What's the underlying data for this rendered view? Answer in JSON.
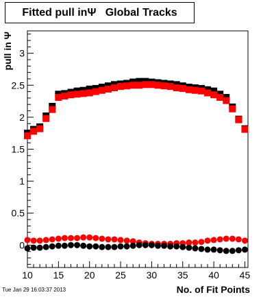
{
  "title": "Fitted pull inΨ   Global Tracks",
  "timestamp": "Tue Jan 29 16:03:37 2013",
  "chart_data": {
    "type": "scatter",
    "title": "Fitted pull inΨ   Global Tracks",
    "xlabel": "No. of Fit Points",
    "ylabel": "pull in  Ψ",
    "xlim": [
      10,
      45.5
    ],
    "ylim": [
      -0.35,
      3.35
    ],
    "xticks": [
      10,
      15,
      20,
      25,
      30,
      35,
      40,
      45
    ],
    "yticks": [
      0,
      0.5,
      1,
      1.5,
      2,
      2.5,
      3
    ],
    "ytick_labels": [
      "0",
      "0.5",
      "1",
      "1.5",
      "2",
      "2.5",
      "3"
    ],
    "grid": false,
    "series": [
      {
        "marker": "square",
        "color": "#000000",
        "x": [
          10,
          11,
          12,
          13,
          14,
          15,
          16,
          17,
          18,
          19,
          20,
          21,
          22,
          23,
          24,
          25,
          26,
          27,
          28,
          29,
          30,
          31,
          32,
          33,
          34,
          35,
          36,
          37,
          38,
          39,
          40,
          41,
          42,
          43,
          44,
          45
        ],
        "y": [
          1.75,
          1.81,
          1.85,
          2.02,
          2.17,
          2.36,
          2.37,
          2.39,
          2.41,
          2.42,
          2.44,
          2.45,
          2.47,
          2.49,
          2.51,
          2.52,
          2.53,
          2.55,
          2.56,
          2.56,
          2.55,
          2.54,
          2.53,
          2.52,
          2.51,
          2.49,
          2.47,
          2.46,
          2.45,
          2.43,
          2.41,
          2.36,
          2.31,
          2.16,
          1.97,
          1.82
        ]
      },
      {
        "marker": "square",
        "color": "#ff0000",
        "x": [
          10,
          11,
          12,
          13,
          14,
          15,
          16,
          17,
          18,
          19,
          20,
          21,
          22,
          23,
          24,
          25,
          26,
          27,
          28,
          29,
          30,
          31,
          32,
          33,
          34,
          35,
          36,
          37,
          38,
          39,
          40,
          41,
          42,
          43,
          44,
          45
        ],
        "y": [
          1.71,
          1.78,
          1.82,
          1.98,
          2.12,
          2.31,
          2.33,
          2.35,
          2.36,
          2.37,
          2.38,
          2.4,
          2.42,
          2.44,
          2.46,
          2.48,
          2.49,
          2.5,
          2.5,
          2.51,
          2.51,
          2.5,
          2.49,
          2.48,
          2.46,
          2.45,
          2.43,
          2.42,
          2.41,
          2.38,
          2.35,
          2.31,
          2.26,
          2.13,
          1.96,
          1.81
        ]
      },
      {
        "marker": "circle",
        "color": "#ff0000",
        "x": [
          10,
          11,
          12,
          13,
          14,
          15,
          16,
          17,
          18,
          19,
          20,
          21,
          22,
          23,
          24,
          25,
          26,
          27,
          28,
          29,
          30,
          31,
          32,
          33,
          34,
          35,
          36,
          37,
          38,
          39,
          40,
          41,
          42,
          43,
          44,
          45
        ],
        "y": [
          0.08,
          0.07,
          0.07,
          0.08,
          0.09,
          0.1,
          0.11,
          0.11,
          0.11,
          0.12,
          0.12,
          0.11,
          0.1,
          0.09,
          0.09,
          0.08,
          0.07,
          0.06,
          0.04,
          0.03,
          0.02,
          0.02,
          0.02,
          0.02,
          0.03,
          0.03,
          0.04,
          0.04,
          0.05,
          0.07,
          0.08,
          0.09,
          0.1,
          0.1,
          0.09,
          0.07
        ]
      },
      {
        "marker": "circle",
        "color": "#000000",
        "x": [
          10,
          11,
          12,
          13,
          14,
          15,
          16,
          17,
          18,
          19,
          20,
          21,
          22,
          23,
          24,
          25,
          26,
          27,
          28,
          29,
          30,
          31,
          32,
          33,
          34,
          35,
          36,
          37,
          38,
          39,
          40,
          41,
          42,
          43,
          44,
          45
        ],
        "y": [
          -0.05,
          -0.04,
          -0.04,
          -0.03,
          -0.02,
          -0.01,
          -0.01,
          0.0,
          0.0,
          -0.01,
          -0.02,
          -0.02,
          -0.03,
          -0.03,
          -0.03,
          -0.02,
          -0.02,
          -0.01,
          0.0,
          0.0,
          0.0,
          -0.01,
          -0.01,
          -0.02,
          -0.02,
          -0.03,
          -0.04,
          -0.05,
          -0.06,
          -0.07,
          -0.07,
          -0.08,
          -0.09,
          -0.09,
          -0.08,
          -0.07
        ]
      }
    ]
  }
}
